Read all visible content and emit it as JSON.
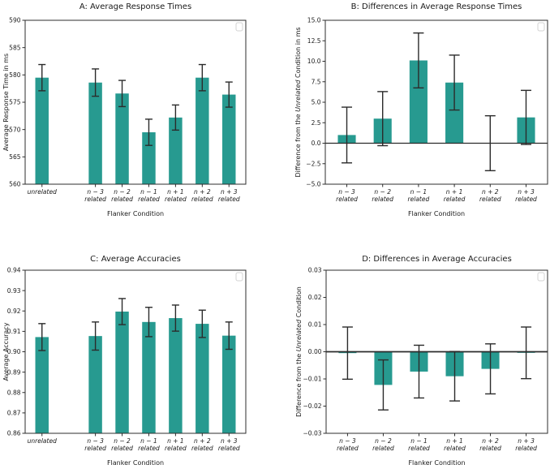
{
  "figure": {
    "background": "#ffffff",
    "bar_color": "#279a90",
    "error_color": "#2b2b2b",
    "spine_color": "#2d2d2d",
    "legend_border_color": "#d3d3d3"
  },
  "chart_data": [
    {
      "id": "A",
      "type": "bar",
      "title": "A: Average Response Times",
      "xlabel": "Flanker Condition",
      "ylabel_segments": [
        {
          "text": "Average Response Time in ms",
          "italic": false
        }
      ],
      "categories": [
        [
          "unrelated"
        ],
        [
          "n − 3",
          "related"
        ],
        [
          "n − 2",
          "related"
        ],
        [
          "n − 1",
          "related"
        ],
        [
          "n + 1",
          "related"
        ],
        [
          "n + 2",
          "related"
        ],
        [
          "n + 3",
          "related"
        ]
      ],
      "x_positions": [
        0,
        2,
        3,
        4,
        5,
        6,
        7
      ],
      "values": [
        579.5,
        578.6,
        576.6,
        569.5,
        572.2,
        579.5,
        576.4
      ],
      "errors": [
        2.4,
        2.5,
        2.4,
        2.4,
        2.3,
        2.4,
        2.3
      ],
      "baseline": 560,
      "ylim": [
        560,
        590
      ],
      "ytick_step": 5,
      "ytick_decimals": 0,
      "xlim": [
        -0.63,
        7.63
      ],
      "zero_line": false,
      "grid": false,
      "legend_empty_box": true
    },
    {
      "id": "B",
      "type": "bar",
      "title": "B: Differences in Average Response Times",
      "xlabel": "Flanker Condition",
      "ylabel_segments": [
        {
          "text": "Difference from the ",
          "italic": false
        },
        {
          "text": "Unrelated",
          "italic": true
        },
        {
          "text": " Condition in ms",
          "italic": false
        }
      ],
      "categories": [
        [
          "n − 3",
          "related"
        ],
        [
          "n − 2",
          "related"
        ],
        [
          "n − 1",
          "related"
        ],
        [
          "n + 1",
          "related"
        ],
        [
          "n + 2",
          "related"
        ],
        [
          "n + 3",
          "related"
        ]
      ],
      "x_positions": [
        0,
        1,
        2,
        3,
        4,
        5
      ],
      "values": [
        1.0,
        3.0,
        10.1,
        7.4,
        0.0,
        3.15
      ],
      "errors": [
        3.4,
        3.3,
        3.35,
        3.35,
        3.35,
        3.3
      ],
      "baseline": 0,
      "ylim": [
        -5.0,
        15.0
      ],
      "ytick_step": 2.5,
      "ytick_decimals": 1,
      "xlim": [
        -0.6,
        5.6
      ],
      "zero_line": true,
      "grid": false,
      "legend_empty_box": true
    },
    {
      "id": "C",
      "type": "bar",
      "title": "C: Average Accuracies",
      "xlabel": "Flanker Condition",
      "ylabel_segments": [
        {
          "text": "Average Accuracy",
          "italic": false
        }
      ],
      "categories": [
        [
          "unrelated"
        ],
        [
          "n − 3",
          "related"
        ],
        [
          "n − 2",
          "related"
        ],
        [
          "n − 1",
          "related"
        ],
        [
          "n + 1",
          "related"
        ],
        [
          "n + 2",
          "related"
        ],
        [
          "n + 3",
          "related"
        ]
      ],
      "x_positions": [
        0,
        2,
        3,
        4,
        5,
        6,
        7
      ],
      "values": [
        0.9072,
        0.9077,
        0.9197,
        0.9146,
        0.9165,
        0.9137,
        0.9079
      ],
      "errors": [
        0.0066,
        0.0069,
        0.0064,
        0.0072,
        0.0064,
        0.0067,
        0.0067
      ],
      "baseline": 0.86,
      "ylim": [
        0.86,
        0.94
      ],
      "ytick_step": 0.01,
      "ytick_decimals": 2,
      "xlim": [
        -0.63,
        7.63
      ],
      "zero_line": false,
      "grid": false,
      "legend_empty_box": true
    },
    {
      "id": "D",
      "type": "bar",
      "title": "D: Differences in Average Accuracies",
      "xlabel": "Flanker Condition",
      "ylabel_segments": [
        {
          "text": "Difference from the ",
          "italic": false
        },
        {
          "text": "Unrelated",
          "italic": true
        },
        {
          "text": " Condition",
          "italic": false
        }
      ],
      "categories": [
        [
          "n − 3",
          "related"
        ],
        [
          "n − 2",
          "related"
        ],
        [
          "n − 1",
          "related"
        ],
        [
          "n + 1",
          "related"
        ],
        [
          "n + 2",
          "related"
        ],
        [
          "n + 3",
          "related"
        ]
      ],
      "x_positions": [
        0,
        1,
        2,
        3,
        4,
        5
      ],
      "values": [
        -0.0005,
        -0.0122,
        -0.0073,
        -0.009,
        -0.0063,
        -0.0004
      ],
      "errors": [
        0.0096,
        0.0092,
        0.0097,
        0.0091,
        0.0092,
        0.0095
      ],
      "baseline": 0,
      "ylim": [
        -0.03,
        0.03
      ],
      "ytick_step": 0.01,
      "ytick_decimals": 2,
      "xlim": [
        -0.6,
        5.6
      ],
      "zero_line": true,
      "grid": false,
      "legend_empty_box": true
    }
  ]
}
